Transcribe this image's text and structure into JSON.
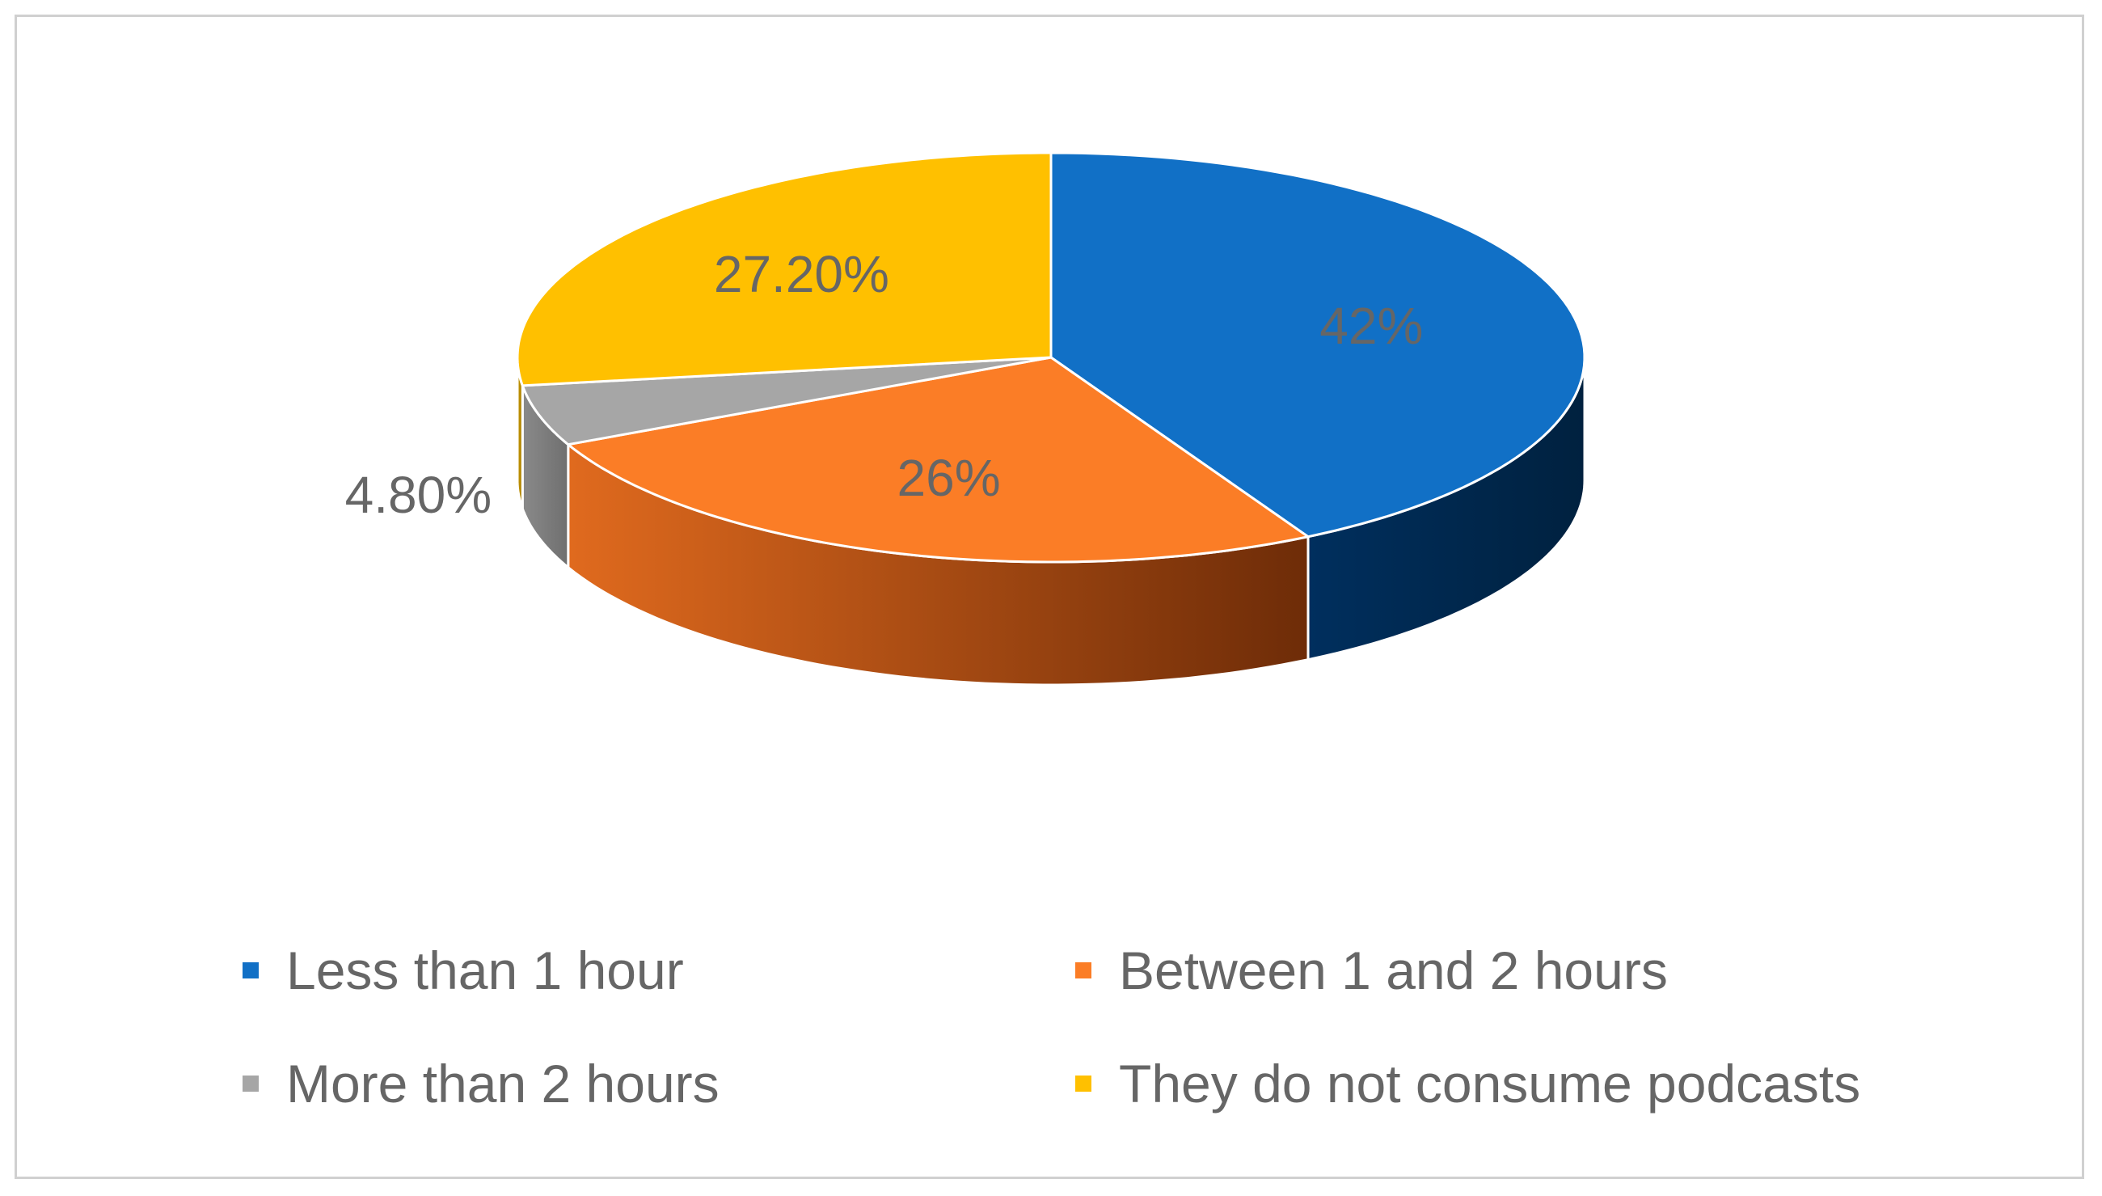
{
  "chart_data": {
    "type": "pie",
    "style": "3d",
    "title": "",
    "categories": [
      "Less than 1 hour",
      "Between 1 and 2 hours",
      "More than 2 hours",
      "They do not consume podcasts"
    ],
    "values": [
      42,
      26,
      4.8,
      27.2
    ],
    "data_labels": [
      "42%",
      "26%",
      "4.80%",
      "27.20%"
    ],
    "colors": [
      "#1170C6",
      "#FB7D26",
      "#A6A6A6",
      "#FFC000"
    ],
    "side_colors": [
      "#00254A",
      "#B5541A",
      "#7A7A7A",
      "#B38600"
    ],
    "legend_position": "bottom"
  }
}
